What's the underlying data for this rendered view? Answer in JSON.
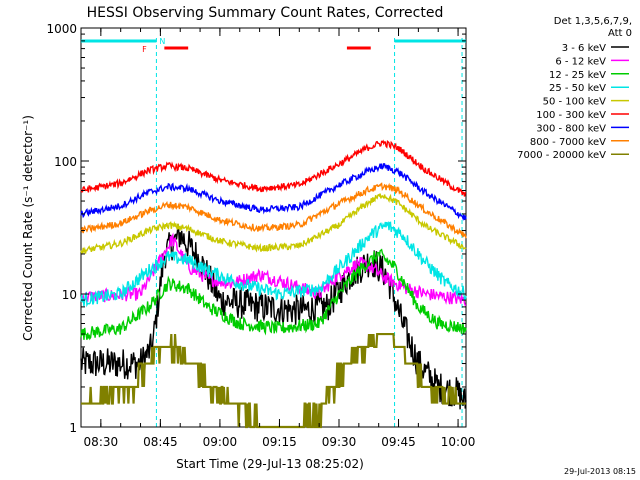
{
  "chart_data": {
    "type": "line",
    "title": "HESSI Observing Summary Count Rates, Corrected",
    "ylabel": "Corrected Count Rate (s⁻¹ detector⁻¹)",
    "xlabel": "Start Time (29-Jul-13 08:25:02)",
    "y_scale": "log",
    "ylim": [
      1,
      1000
    ],
    "xlim": [
      "08:25",
      "10:02"
    ],
    "x_ticks": [
      "08:30",
      "08:45",
      "09:00",
      "09:15",
      "09:30",
      "09:45",
      "10:00"
    ],
    "y_ticks": [
      {
        "value": 1,
        "label": "1"
      },
      {
        "value": 10,
        "label": "10"
      },
      {
        "value": 100,
        "label": "100"
      },
      {
        "value": 1000,
        "label": "1000"
      }
    ],
    "legend": {
      "placement": "right",
      "title_lines": [
        "Det 1,3,5,6,7,9,",
        "Att 0"
      ]
    },
    "series": [
      {
        "name": "3 - 6 keV",
        "color": "#000000",
        "x": [
          "08:25",
          "08:40",
          "08:43",
          "08:46",
          "08:50",
          "08:55",
          "09:00",
          "09:10",
          "09:20",
          "09:27",
          "09:33",
          "09:38",
          "09:42",
          "09:46",
          "09:50",
          "09:55",
          "10:00",
          "10:02"
        ],
        "y": [
          3,
          3,
          4,
          20,
          28,
          18,
          9,
          8,
          7.5,
          8,
          14,
          18,
          14,
          6,
          3,
          2,
          1.8,
          1.5
        ]
      },
      {
        "name": "6 - 12 keV",
        "color": "#ff00ff",
        "x": [
          "08:25",
          "08:40",
          "08:45",
          "08:48",
          "08:52",
          "08:57",
          "09:03",
          "09:10",
          "09:17",
          "09:25",
          "09:30",
          "09:35",
          "09:38",
          "09:42",
          "09:47",
          "09:52",
          "09:57",
          "10:02"
        ],
        "y": [
          9.5,
          10,
          18,
          26,
          16,
          13,
          12,
          14,
          12,
          10,
          14,
          17,
          16,
          13,
          11,
          10,
          9.5,
          9
        ]
      },
      {
        "name": "12 - 25 keV",
        "color": "#00cc00",
        "x": [
          "08:25",
          "08:35",
          "08:42",
          "08:47",
          "08:52",
          "08:57",
          "09:05",
          "09:15",
          "09:25",
          "09:30",
          "09:35",
          "09:40",
          "09:44",
          "09:50",
          "09:55",
          "10:02"
        ],
        "y": [
          5,
          5.5,
          8,
          12,
          11,
          8,
          6,
          5.5,
          6,
          10,
          15,
          20,
          16,
          8,
          6,
          5.5
        ]
      },
      {
        "name": "25 - 50 keV",
        "color": "#00e5e5",
        "x": [
          "08:25",
          "08:35",
          "08:42",
          "08:47",
          "08:52",
          "08:57",
          "09:05",
          "09:15",
          "09:25",
          "09:32",
          "09:38",
          "09:42",
          "09:46",
          "09:52",
          "09:57",
          "10:02"
        ],
        "y": [
          9,
          10,
          15,
          19,
          18,
          15,
          12,
          10,
          11,
          18,
          28,
          33,
          28,
          17,
          12,
          10
        ]
      },
      {
        "name": "50 - 100 keV",
        "color": "#c8c800",
        "x": [
          "08:25",
          "08:35",
          "08:42",
          "08:47",
          "08:52",
          "09:00",
          "09:10",
          "09:20",
          "09:30",
          "09:37",
          "09:41",
          "09:45",
          "09:52",
          "10:02"
        ],
        "y": [
          21,
          24,
          30,
          33,
          31,
          25,
          22,
          23,
          33,
          48,
          56,
          48,
          32,
          22
        ]
      },
      {
        "name": "100 - 300 keV",
        "color": "#ff0000",
        "x": [
          "08:25",
          "08:35",
          "08:42",
          "08:47",
          "08:52",
          "09:00",
          "09:10",
          "09:20",
          "09:30",
          "09:37",
          "09:41",
          "09:45",
          "09:52",
          "10:02"
        ],
        "y": [
          60,
          68,
          85,
          92,
          88,
          72,
          62,
          66,
          95,
          125,
          138,
          125,
          85,
          55
        ]
      },
      {
        "name": "300 - 800 keV",
        "color": "#0000ff",
        "x": [
          "08:25",
          "08:35",
          "08:42",
          "08:47",
          "08:52",
          "09:00",
          "09:10",
          "09:20",
          "09:30",
          "09:37",
          "09:41",
          "09:45",
          "09:52",
          "10:02"
        ],
        "y": [
          40,
          46,
          58,
          64,
          62,
          50,
          43,
          45,
          66,
          83,
          92,
          83,
          57,
          37
        ]
      },
      {
        "name": "800 - 7000 keV",
        "color": "#ff7f00",
        "x": [
          "08:25",
          "08:35",
          "08:42",
          "08:47",
          "08:52",
          "09:00",
          "09:10",
          "09:20",
          "09:30",
          "09:37",
          "09:41",
          "09:45",
          "09:52",
          "10:02"
        ],
        "y": [
          30,
          34,
          42,
          47,
          45,
          36,
          31,
          33,
          48,
          60,
          65,
          60,
          42,
          27
        ]
      },
      {
        "name": "7000 - 20000 keV",
        "color": "#808000",
        "x": [
          "08:25",
          "08:38",
          "08:42",
          "08:47",
          "08:52",
          "08:58",
          "09:05",
          "09:15",
          "09:25",
          "09:30",
          "09:36",
          "09:42",
          "09:48",
          "09:52",
          "10:02"
        ],
        "y": [
          1.5,
          2,
          3,
          4,
          3,
          2,
          1.3,
          1,
          1.2,
          2.5,
          4,
          5.5,
          3,
          2,
          1.5
        ]
      }
    ],
    "status_bars": [
      {
        "color": "#00e5e5",
        "start": "08:25",
        "end": "08:44"
      },
      {
        "color": "#00e5e5",
        "start": "09:44",
        "end": "10:02"
      },
      {
        "color": "#ff0000",
        "start": "08:46",
        "end": "08:52"
      },
      {
        "color": "#ff0000",
        "start": "09:32",
        "end": "09:38"
      }
    ],
    "status_flags": [
      {
        "label": "F",
        "color": "#ff0000",
        "time": "08:43"
      },
      {
        "label": "N",
        "color": "#00e5e5",
        "time": "08:44"
      }
    ],
    "night_markers": [
      "08:25",
      "08:44",
      "09:44",
      "10:01"
    ],
    "footer_date": "29-Jul-2013 08:15"
  }
}
